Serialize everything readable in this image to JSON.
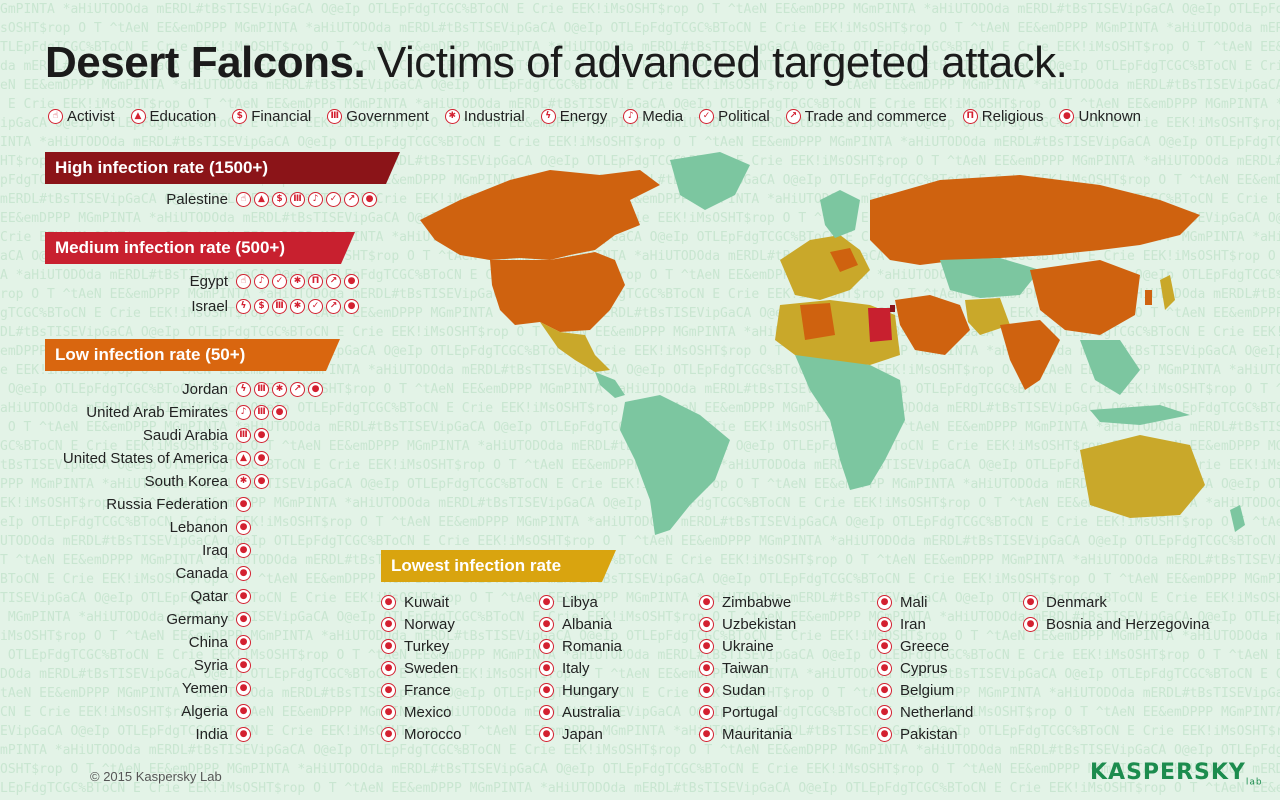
{
  "title": {
    "bold": "Desert Falcons.",
    "rest": "Victims of advanced targeted attack."
  },
  "legend": [
    {
      "key": "activist",
      "label": "Activist",
      "glyph": "☝"
    },
    {
      "key": "education",
      "label": "Education",
      "glyph": "▲"
    },
    {
      "key": "financial",
      "label": "Financial",
      "glyph": "$"
    },
    {
      "key": "government",
      "label": "Government",
      "glyph": "Ⅲ"
    },
    {
      "key": "industrial",
      "label": "Industrial",
      "glyph": "✱"
    },
    {
      "key": "energy",
      "label": "Energy",
      "glyph": "ϟ"
    },
    {
      "key": "media",
      "label": "Media",
      "glyph": "♪"
    },
    {
      "key": "political",
      "label": "Political",
      "glyph": "✓"
    },
    {
      "key": "trade",
      "label": "Trade and commerce",
      "glyph": "↗"
    },
    {
      "key": "religious",
      "label": "Religious",
      "glyph": "Π"
    },
    {
      "key": "unknown",
      "label": "Unknown",
      "glyph": "●"
    }
  ],
  "high": {
    "label": "High infection rate (1500+)",
    "color": "#8b1418",
    "countries": [
      {
        "name": "Palestine",
        "icons": [
          "activist",
          "education",
          "financial",
          "government",
          "media",
          "political",
          "trade",
          "unknown"
        ]
      }
    ]
  },
  "medium": {
    "label": "Medium infection rate (500+)",
    "color": "#c8202f",
    "countries": [
      {
        "name": "Egypt",
        "icons": [
          "activist",
          "media",
          "political",
          "industrial",
          "religious",
          "trade",
          "unknown"
        ]
      },
      {
        "name": "Israel",
        "icons": [
          "energy",
          "financial",
          "government",
          "industrial",
          "political",
          "trade",
          "unknown"
        ]
      }
    ]
  },
  "low": {
    "label": "Low infection rate (50+)",
    "color": "#d9660f",
    "countries": [
      {
        "name": "Jordan",
        "icons": [
          "energy",
          "government",
          "industrial",
          "trade",
          "unknown"
        ]
      },
      {
        "name": "United Arab Emirates",
        "icons": [
          "media",
          "government",
          "unknown"
        ]
      },
      {
        "name": "Saudi Arabia",
        "icons": [
          "government",
          "unknown"
        ]
      },
      {
        "name": "United States of America",
        "icons": [
          "education",
          "unknown"
        ]
      },
      {
        "name": "South Korea",
        "icons": [
          "industrial",
          "unknown"
        ]
      },
      {
        "name": "Russia Federation",
        "icons": [
          "unknown"
        ]
      },
      {
        "name": "Lebanon",
        "icons": [
          "unknown"
        ]
      },
      {
        "name": "Iraq",
        "icons": [
          "unknown"
        ]
      },
      {
        "name": "Canada",
        "icons": [
          "unknown"
        ]
      },
      {
        "name": "Qatar",
        "icons": [
          "unknown"
        ]
      },
      {
        "name": "Germany",
        "icons": [
          "unknown"
        ]
      },
      {
        "name": "China",
        "icons": [
          "unknown"
        ]
      },
      {
        "name": "Syria",
        "icons": [
          "unknown"
        ]
      },
      {
        "name": "Yemen",
        "icons": [
          "unknown"
        ]
      },
      {
        "name": "Algeria",
        "icons": [
          "unknown"
        ]
      },
      {
        "name": "India",
        "icons": [
          "unknown"
        ]
      }
    ]
  },
  "lowest": {
    "label": "Lowest infection rate",
    "color": "#d9a40f",
    "columns": [
      [
        "Kuwait",
        "Norway",
        "Turkey",
        "Sweden",
        "France",
        "Mexico",
        "Morocco"
      ],
      [
        "Libya",
        "Albania",
        "Romania",
        "Italy",
        "Hungary",
        "Australia",
        "Japan"
      ],
      [
        "Zimbabwe",
        "Uzbekistan",
        "Ukraine",
        "Taiwan",
        "Sudan",
        "Portugal",
        "Mauritania"
      ],
      [
        "Mali",
        "Iran",
        "Greece",
        "Cyprus",
        "Belgium",
        "Netherland",
        "Pakistan"
      ],
      [
        "Denmark",
        "Bosnia and Herzegovina"
      ]
    ]
  },
  "map_colors": {
    "none": "#7cc6a0",
    "lowest": "#c9a82a",
    "low": "#cf620f",
    "medium": "#c8202f",
    "high": "#8b1418"
  },
  "copyright": "© 2015 Kaspersky Lab",
  "logo": {
    "text": "KASPERSKY",
    "suffix": "lab"
  }
}
